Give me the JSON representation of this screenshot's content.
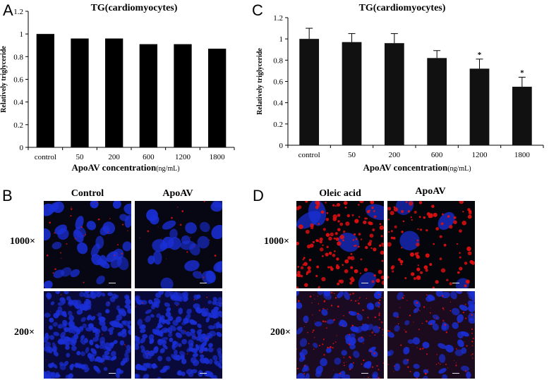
{
  "panels": {
    "A": "A",
    "B": "B",
    "C": "C",
    "D": "D"
  },
  "chart_data": [
    {
      "type": "bar",
      "title": "TG(cardiomyocytes)",
      "ylabel": "Relatively triglyceride",
      "xlabel": "ApoAV concentration",
      "xunit": "(ng/mL)",
      "categories": [
        "control",
        "50",
        "200",
        "600",
        "1200",
        "1800"
      ],
      "values": [
        1.0,
        0.96,
        0.96,
        0.91,
        0.91,
        0.87
      ],
      "ylim": [
        0,
        1.2
      ],
      "yticks": [
        "0",
        "0.2",
        "0.4",
        "0.6",
        "0.8",
        "1",
        "1.2"
      ],
      "bar_color": "#000000",
      "grid": false
    },
    {
      "type": "bar",
      "title": "TG(cardiomyocytes)",
      "ylabel": "Relatively triglyceride",
      "xlabel": "ApoAV concentration",
      "xunit": "(ng/mL)",
      "categories": [
        "control",
        "50",
        "200",
        "600",
        "1200",
        "1800"
      ],
      "values": [
        1.0,
        0.97,
        0.96,
        0.82,
        0.72,
        0.55
      ],
      "errors": [
        0.1,
        0.08,
        0.09,
        0.07,
        0.09,
        0.09
      ],
      "significance": [
        "",
        "",
        "",
        "",
        "*",
        "*"
      ],
      "ylim": [
        0,
        1.2
      ],
      "yticks": [
        "0",
        "0.2",
        "0.4",
        "0.6",
        "0.8",
        "1",
        "1.2"
      ],
      "bar_color": "#111111",
      "grid": false
    }
  ],
  "micrographs": {
    "B": {
      "columns": [
        "Control",
        "ApoAV"
      ],
      "rows": [
        "1000×",
        "200×"
      ]
    },
    "D": {
      "columns": [
        "Oleic acid",
        "ApoAV"
      ],
      "rows": [
        "1000×",
        "200×"
      ]
    },
    "stain_colors": {
      "nucleus": "#1a2fd6",
      "lipid": "#e01010",
      "background": "#070714"
    }
  }
}
